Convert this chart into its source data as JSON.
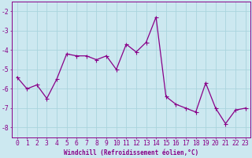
{
  "x": [
    0,
    1,
    2,
    3,
    4,
    5,
    6,
    7,
    8,
    9,
    10,
    11,
    12,
    13,
    14,
    15,
    16,
    17,
    18,
    19,
    20,
    21,
    22,
    23
  ],
  "y": [
    -5.4,
    -6.0,
    -5.8,
    -6.5,
    -5.5,
    -4.2,
    -4.3,
    -4.3,
    -4.5,
    -4.3,
    -5.0,
    -3.7,
    -4.1,
    -3.6,
    -2.3,
    -6.4,
    -6.8,
    -7.0,
    -7.2,
    -5.7,
    -7.0,
    -7.8,
    -7.1,
    -7.0
  ],
  "line_color": "#880088",
  "marker_color": "#880088",
  "bg_color": "#cce8f0",
  "grid_color": "#aad4dd",
  "xlabel": "Windchill (Refroidissement éolien,°C)",
  "xlim": [
    -0.5,
    23.5
  ],
  "ylim": [
    -8.5,
    -1.5
  ],
  "yticks": [
    -8,
    -7,
    -6,
    -5,
    -4,
    -3,
    -2
  ],
  "xticks": [
    0,
    1,
    2,
    3,
    4,
    5,
    6,
    7,
    8,
    9,
    10,
    11,
    12,
    13,
    14,
    15,
    16,
    17,
    18,
    19,
    20,
    21,
    22,
    23
  ],
  "xlabel_fontsize": 5.5,
  "tick_fontsize": 5.8,
  "line_width": 0.9,
  "marker_size": 2.0,
  "marker": "+"
}
